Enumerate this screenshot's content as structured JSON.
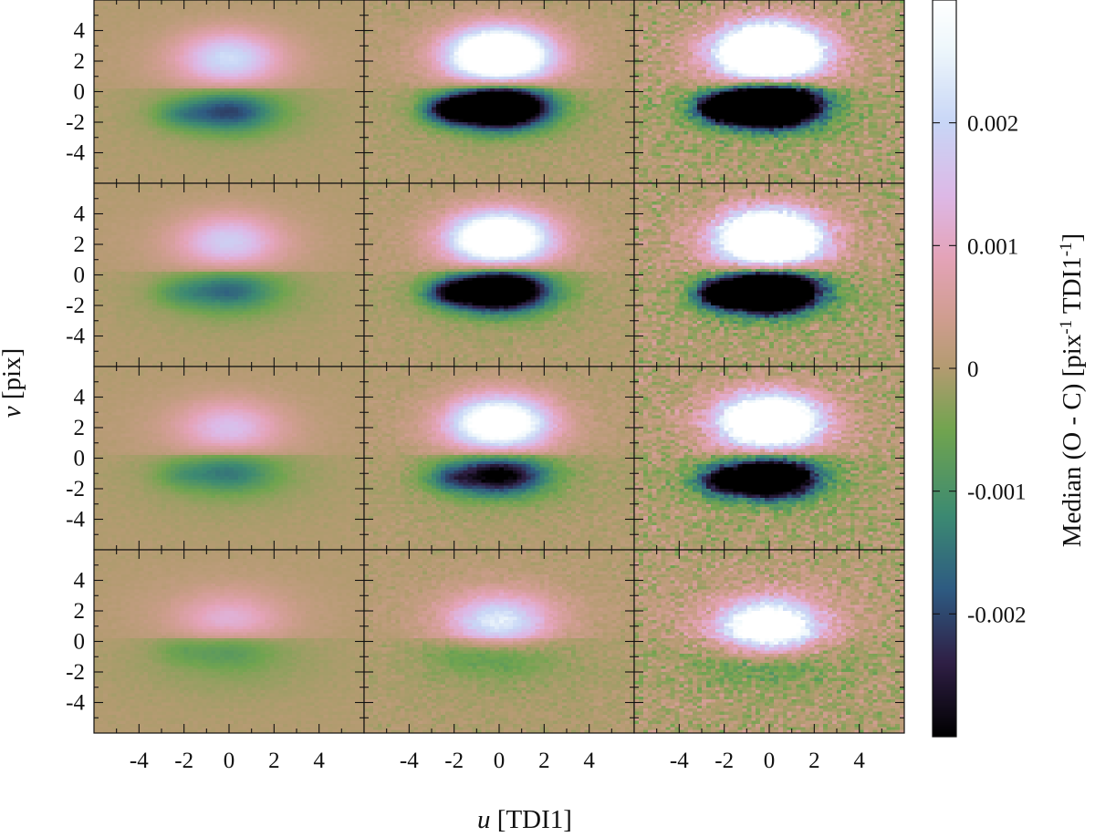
{
  "chart_data": {
    "type": "heatmap",
    "layout": {
      "rows": 4,
      "columns": 3
    },
    "xlabel": {
      "var": "u",
      "unit": "[TDI1]"
    },
    "ylabel": {
      "var": "v",
      "unit": "[pix]"
    },
    "xlim": [
      -6,
      6
    ],
    "ylim": [
      -6,
      6
    ],
    "x_ticks": [
      -4,
      -2,
      0,
      2,
      4
    ],
    "y_ticks": [
      -4,
      -2,
      0,
      2,
      4
    ],
    "colorbar": {
      "label": "Median (O - C) [pix",
      "label_sup1": "-1",
      "label_mid": " TDI1",
      "label_sup2": "-1",
      "label_end": "]",
      "range": [
        -0.003,
        0.003
      ],
      "ticks": [
        -0.002,
        -0.001,
        0,
        0.001,
        0.002
      ],
      "tick_labels": [
        "-0.002",
        "-0.001",
        "0",
        "0.001",
        "0.002"
      ],
      "colormap": [
        [
          -0.003,
          "#000000"
        ],
        [
          -0.0024,
          "#2f1f45"
        ],
        [
          -0.0018,
          "#2e5b82"
        ],
        [
          -0.0012,
          "#3c8a72"
        ],
        [
          -0.0005,
          "#71a44f"
        ],
        [
          0.0,
          "#b39b70"
        ],
        [
          0.0004,
          "#cf9d8f"
        ],
        [
          0.0009,
          "#e4a3b8"
        ],
        [
          0.0014,
          "#ddb8e6"
        ],
        [
          0.002,
          "#c8d6f6"
        ],
        [
          0.0026,
          "#eef7fb"
        ],
        [
          0.003,
          "#ffffff"
        ]
      ]
    },
    "panels": [
      {
        "row": 1,
        "col": 1,
        "pos_amp": 0.0018,
        "pos_cy": 2.2,
        "neg_amp": 0.0018,
        "neg_cy": -1.3,
        "noise": 3e-05
      },
      {
        "row": 1,
        "col": 2,
        "pos_amp": 0.0052,
        "pos_cy": 2.4,
        "neg_amp": 0.0062,
        "neg_cy": -1.0,
        "noise": 8e-05
      },
      {
        "row": 1,
        "col": 3,
        "pos_amp": 0.0075,
        "pos_cy": 2.6,
        "neg_amp": 0.0085,
        "neg_cy": -0.9,
        "noise": 0.00022
      },
      {
        "row": 2,
        "col": 1,
        "pos_amp": 0.0015,
        "pos_cy": 2.2,
        "neg_amp": 0.0014,
        "neg_cy": -1.0,
        "noise": 3e-05
      },
      {
        "row": 2,
        "col": 2,
        "pos_amp": 0.0045,
        "pos_cy": 2.4,
        "neg_amp": 0.0052,
        "neg_cy": -1.0,
        "noise": 8e-05
      },
      {
        "row": 2,
        "col": 3,
        "pos_amp": 0.0065,
        "pos_cy": 2.4,
        "neg_amp": 0.0075,
        "neg_cy": -1.1,
        "noise": 0.00022
      },
      {
        "row": 3,
        "col": 1,
        "pos_amp": 0.0012,
        "pos_cy": 2.0,
        "neg_amp": 0.0012,
        "neg_cy": -0.9,
        "noise": 3e-05
      },
      {
        "row": 3,
        "col": 2,
        "pos_amp": 0.0038,
        "pos_cy": 2.3,
        "neg_amp": 0.003,
        "neg_cy": -1.1,
        "noise": 8e-05
      },
      {
        "row": 3,
        "col": 3,
        "pos_amp": 0.0055,
        "pos_cy": 2.4,
        "neg_amp": 0.0055,
        "neg_cy": -1.3,
        "noise": 0.00022
      },
      {
        "row": 4,
        "col": 1,
        "pos_amp": 0.001,
        "pos_cy": 1.2,
        "neg_amp": 0.0008,
        "neg_cy": -0.4,
        "noise": 3e-05
      },
      {
        "row": 4,
        "col": 2,
        "pos_amp": 0.0022,
        "pos_cy": 1.2,
        "neg_amp": 0.0007,
        "neg_cy": -0.7,
        "noise": 8e-05
      },
      {
        "row": 4,
        "col": 3,
        "pos_amp": 0.0042,
        "pos_cy": 0.9,
        "neg_amp": 0.0006,
        "neg_cy": -1.4,
        "noise": 0.00022
      }
    ]
  }
}
